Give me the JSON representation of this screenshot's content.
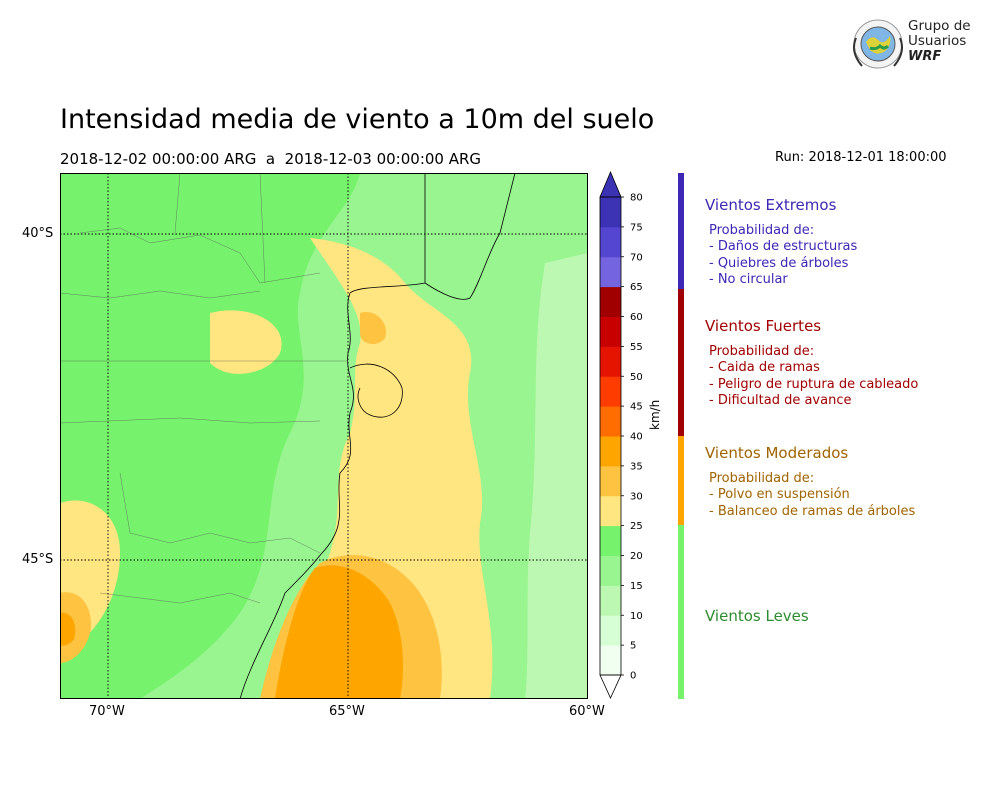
{
  "header": {
    "title": "Intensidad media de viento a 10m del suelo",
    "subtitle": "2018-12-02 00:00:00 ARG  a  2018-12-03 00:00:00 ARG",
    "run": "Run: 2018-12-01 18:00:00"
  },
  "logo": {
    "line1": "Grupo de",
    "line2": "Usuarios",
    "line3": "WRF"
  },
  "map": {
    "lat_labels": [
      "40°S",
      "45°S"
    ],
    "lon_labels": [
      "70°W",
      "65°W",
      "60°W"
    ]
  },
  "colorbar": {
    "unit": "km/h",
    "ticks": [
      "0",
      "5",
      "10",
      "15",
      "20",
      "25",
      "30",
      "35",
      "40",
      "45",
      "50",
      "55",
      "60",
      "65",
      "70",
      "75",
      "80"
    ],
    "colors": [
      "#f0fff0",
      "#d6ffd6",
      "#bdf8b3",
      "#98f58f",
      "#76f26d",
      "#ffe680",
      "#ffc342",
      "#ffa500",
      "#ff6d00",
      "#ff3c00",
      "#e51400",
      "#c80000",
      "#a00000",
      "#7464e0",
      "#5546d2",
      "#3c32b4"
    ]
  },
  "categories": [
    {
      "title": "Vientos Extremos",
      "color": "#3c28b4",
      "desc": [
        "Probabilidad de:",
        "- Daños de estructuras",
        "- Quiebres de árboles",
        "- No circular"
      ]
    },
    {
      "title": "Vientos Fuertes",
      "color": "#a00000",
      "desc": [
        "Probabilidad de:",
        "- Caida de ramas",
        "- Peligro de ruptura de cableado",
        "- Dificultad de avance"
      ]
    },
    {
      "title": "Vientos Moderados",
      "color": "#a06400",
      "desc": [
        "Probabilidad de:",
        "- Polvo en suspensión",
        "- Balanceo de ramas de árboles"
      ]
    },
    {
      "title": "Vientos Leves",
      "color": "#2d8c2d",
      "desc": []
    }
  ],
  "category_bar_colors": [
    "#3c28b4",
    "#a00000",
    "#ffa500",
    "#76f26d"
  ]
}
